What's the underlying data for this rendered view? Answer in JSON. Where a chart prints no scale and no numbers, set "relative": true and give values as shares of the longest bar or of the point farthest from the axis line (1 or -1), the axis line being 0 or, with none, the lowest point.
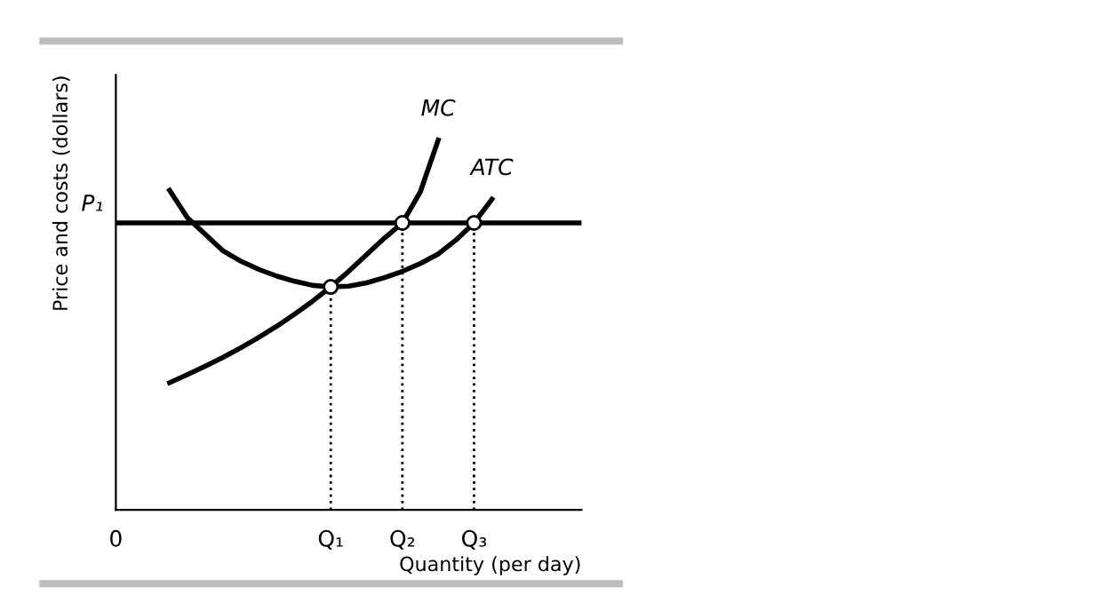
{
  "chart_data": {
    "type": "line",
    "relative": true,
    "xlabel": "Quantity (per day)",
    "ylabel": "Price and costs (dollars)",
    "categories": [
      "0",
      null,
      null,
      null,
      null,
      null,
      null,
      null,
      null,
      null,
      null,
      null,
      "Q₁",
      null,
      null,
      null,
      "Q₂",
      null,
      null,
      null,
      "Q₃",
      null,
      null,
      null,
      null,
      null,
      null
    ],
    "series": [
      {
        "type": "line",
        "name": "MC",
        "color": "#000000",
        "values": [
          null,
          null,
          null,
          0.344,
          0.366,
          0.389,
          0.413,
          0.439,
          0.467,
          0.497,
          0.53,
          0.565,
          0.603,
          0.645,
          0.69,
          0.735,
          0.776,
          0.86,
          1.0,
          null,
          null,
          null,
          null,
          null,
          null,
          null,
          null
        ]
      },
      {
        "type": "line",
        "name": "ATC",
        "color": "#000000",
        "values": [
          null,
          null,
          null,
          0.864,
          0.79,
          0.745,
          0.7,
          0.672,
          0.65,
          0.632,
          0.618,
          0.607,
          0.603,
          0.605,
          0.614,
          0.628,
          0.645,
          0.666,
          0.692,
          0.73,
          0.776,
          0.84,
          null,
          null,
          null,
          null,
          null
        ]
      },
      {
        "type": "lollipop",
        "color": "#ffffff",
        "marker": "circle",
        "line_style": "dotted",
        "values": [
          null,
          null,
          null,
          null,
          null,
          null,
          null,
          null,
          null,
          null,
          null,
          null,
          0.603,
          null,
          null,
          null,
          0.776,
          null,
          null,
          null,
          0.776,
          null,
          null,
          null,
          null,
          null,
          null
        ]
      }
    ],
    "ref_lines": [
      {
        "axis": "y",
        "value": 0.776,
        "label": "P₁",
        "color": "#000000"
      }
    ]
  }
}
